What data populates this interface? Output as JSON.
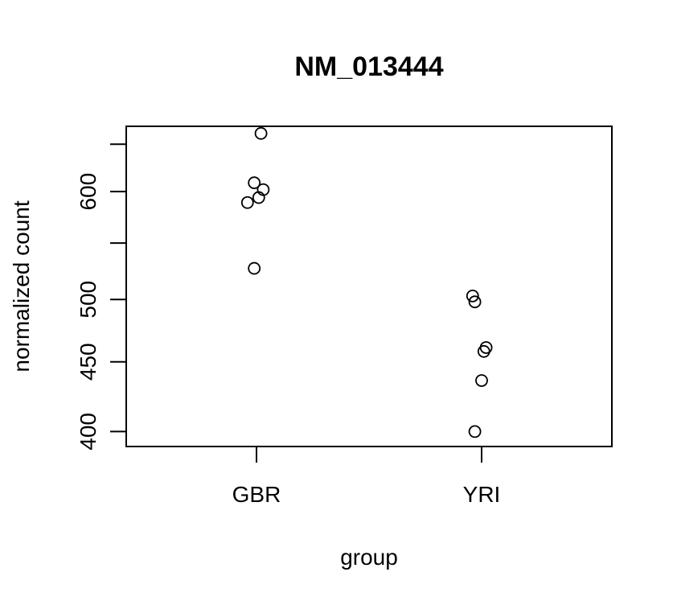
{
  "chart_data": {
    "type": "scatter",
    "title": "NM_013444",
    "xlabel": "group",
    "ylabel": "normalized count",
    "log_y": true,
    "ylim": [
      390,
      670
    ],
    "y_ticks": [
      {
        "value": 400,
        "label": "400"
      },
      {
        "value": 450,
        "label": "450"
      },
      {
        "value": 500,
        "label": "500"
      },
      {
        "value": 550,
        "label": ""
      },
      {
        "value": 600,
        "label": "600"
      },
      {
        "value": 650,
        "label": ""
      }
    ],
    "categories": [
      "GBR",
      "YRI"
    ],
    "points": [
      {
        "group": "GBR",
        "jitter": 0.02,
        "y": 662
      },
      {
        "group": "GBR",
        "jitter": -0.01,
        "y": 609
      },
      {
        "group": "GBR",
        "jitter": 0.03,
        "y": 602
      },
      {
        "group": "GBR",
        "jitter": 0.01,
        "y": 594
      },
      {
        "group": "GBR",
        "jitter": -0.04,
        "y": 589
      },
      {
        "group": "GBR",
        "jitter": -0.01,
        "y": 527
      },
      {
        "group": "YRI",
        "jitter": -0.04,
        "y": 503
      },
      {
        "group": "YRI",
        "jitter": -0.03,
        "y": 498
      },
      {
        "group": "YRI",
        "jitter": 0.02,
        "y": 461
      },
      {
        "group": "YRI",
        "jitter": 0.01,
        "y": 458
      },
      {
        "group": "YRI",
        "jitter": 0.0,
        "y": 436
      },
      {
        "group": "YRI",
        "jitter": -0.03,
        "y": 400
      }
    ]
  }
}
